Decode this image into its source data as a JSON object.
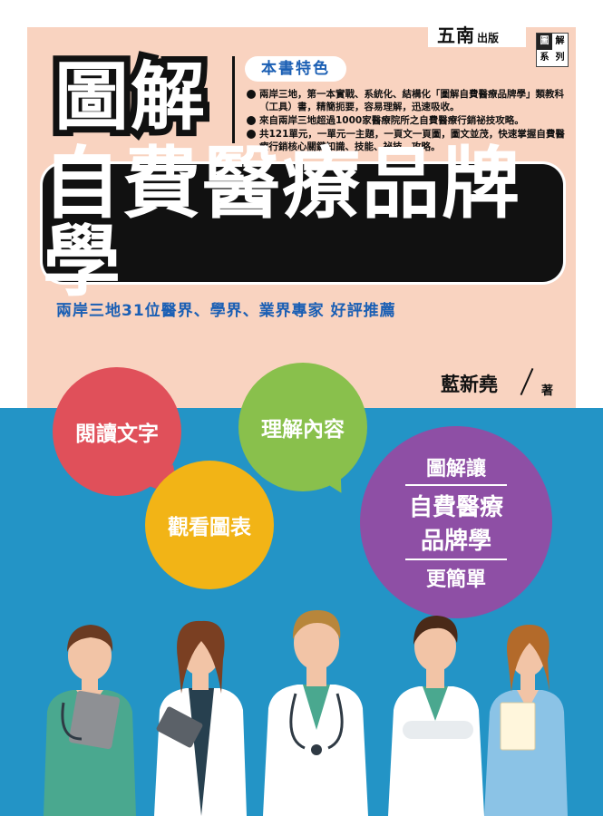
{
  "publisher": {
    "name": "五南",
    "suffix": "出版"
  },
  "series_badge": [
    "圖",
    "解",
    "系",
    "列"
  ],
  "brand_title": "圖解",
  "features": {
    "heading": "本書特色",
    "items": [
      "兩岸三地，第一本實戰、系統化、結構化「圖解自費醫療品牌學」類教科（工具）書，精簡扼要，容易理解，迅速吸收。",
      "來自兩岸三地超過1000家醫療院所之自費醫療行銷祕技攻略。",
      "共121單元，一單元一主題，一頁文一頁圖，圖文並茂，快速掌握自費醫療行銷核心關鍵知識、技能、祕技、攻略。"
    ]
  },
  "title": "自費醫療品牌學",
  "recommendation": "兩岸三地31位醫界、學界、業界專家 好評推薦",
  "author": {
    "name": "藍新堯",
    "role": "著"
  },
  "bubbles": {
    "read": "閱讀文字",
    "understand": "理解內容",
    "view": "觀看圖表",
    "summary": [
      "圖解讓",
      "自費醫療",
      "品牌學",
      "更簡單"
    ]
  },
  "colors": {
    "top_bg": "#f9d3c0",
    "bottom_bg": "#2394c6",
    "red": "#e0505a",
    "green": "#89c04c",
    "yellow": "#f2b416",
    "purple": "#8e4fa5",
    "accent_blue": "#1b5fb4"
  }
}
